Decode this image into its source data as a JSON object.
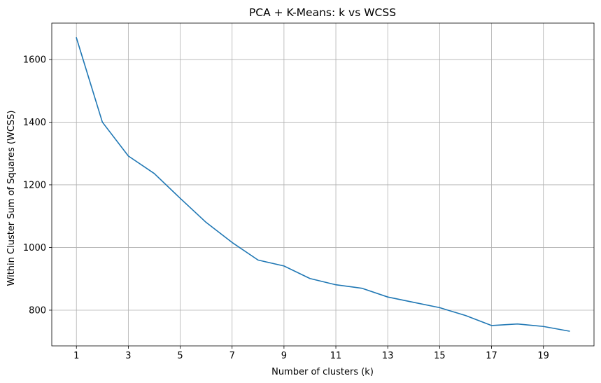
{
  "chart_data": {
    "type": "line",
    "title": "PCA + K-Means: k vs WCSS",
    "xlabel": "Number of clusters (k)",
    "ylabel": "Within Cluster Sum of Squares (WCSS)",
    "x": [
      1,
      2,
      3,
      4,
      5,
      6,
      7,
      8,
      9,
      10,
      11,
      12,
      13,
      14,
      15,
      16,
      17,
      18,
      19,
      20
    ],
    "series": [
      {
        "values": [
          1669,
          1400,
          1292,
          1236,
          1157,
          1080,
          1016,
          960,
          941,
          901,
          881,
          870,
          842,
          825,
          808,
          783,
          751,
          756,
          748,
          733
        ],
        "color": "#1f77b4"
      }
    ],
    "xticks": [
      1,
      3,
      5,
      7,
      9,
      11,
      13,
      15,
      17,
      19
    ],
    "yticks": [
      800,
      1000,
      1200,
      1400,
      1600
    ],
    "xlim": [
      0.05,
      20.95
    ],
    "ylim": [
      686,
      1716
    ],
    "grid": true,
    "grid_color": "#b0b0b0",
    "axis_color": "#000000"
  }
}
